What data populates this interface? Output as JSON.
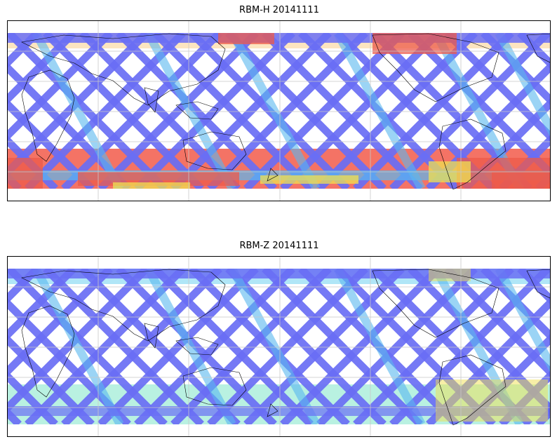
{
  "panels": [
    {
      "title": "RBM-H 20141111",
      "key": "rbm-h",
      "south_color": "#f25a4a",
      "north_color": "#f7b44a"
    },
    {
      "title": "RBM-Z 20141111",
      "key": "rbm-z",
      "south_color": "#7fe6c8",
      "north_color": "#6fd2f0"
    }
  ],
  "colors": {
    "track_low": "#6a6ef5",
    "track_mid": "#5ab8f0",
    "track_high_warm": "#f0e050",
    "track_hot": "#ee5a4a",
    "coast": "#000000",
    "grid": "#c8c8c8"
  },
  "icons": {
    "coastline": "coastline-icon"
  }
}
